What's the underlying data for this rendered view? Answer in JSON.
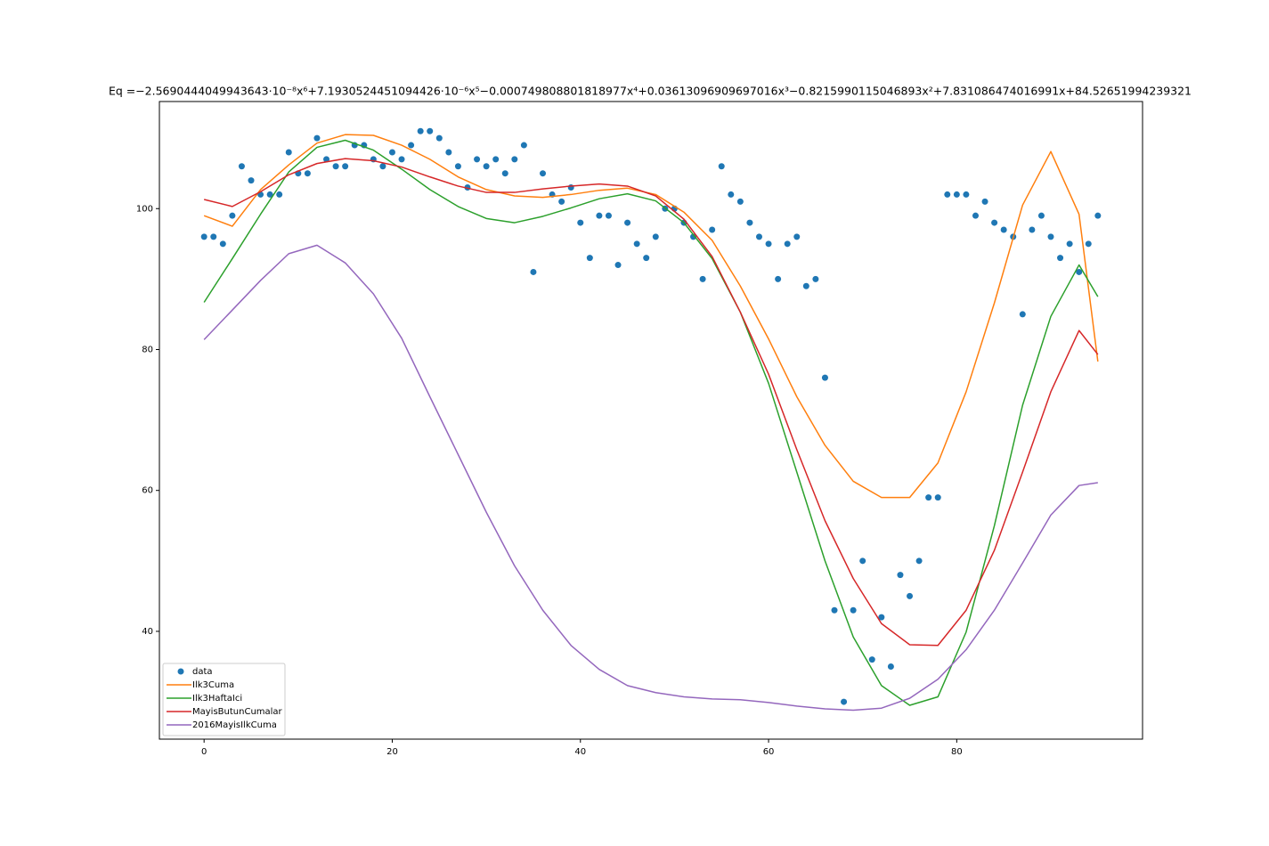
{
  "chart_data": {
    "type": "line",
    "title": "Eq =−2.5690444049943643·10⁻⁸x⁶+7.1930524451094426·10⁻⁶x⁵−0.000749808801818977x⁴+0.03613096909697016x³−0.8215990115046893x²+7.831086474016991x+84.52651994239321",
    "title_color": "#ff0000",
    "xlim": [
      -4.75,
      99.75
    ],
    "ylim": [
      24.7,
      115.2
    ],
    "xticks": [
      0,
      20,
      40,
      60,
      80
    ],
    "yticks": [
      40,
      60,
      80,
      100
    ],
    "grid": false,
    "legend": "lower left",
    "series": [
      {
        "name": "data",
        "type": "scatter",
        "color": "#1f77b4",
        "x": [
          0,
          1,
          2,
          3,
          4,
          5,
          6,
          7,
          8,
          9,
          10,
          11,
          12,
          13,
          14,
          15,
          16,
          17,
          18,
          19,
          20,
          21,
          22,
          23,
          24,
          25,
          26,
          27,
          28,
          29,
          30,
          31,
          32,
          33,
          34,
          35,
          36,
          37,
          38,
          39,
          40,
          41,
          42,
          43,
          44,
          45,
          46,
          47,
          48,
          49,
          50,
          51,
          52,
          53,
          54,
          55,
          56,
          57,
          58,
          59,
          60,
          61,
          62,
          63,
          64,
          65,
          66,
          67,
          68,
          69,
          70,
          71,
          72,
          73,
          74,
          75,
          76,
          77,
          78,
          79,
          80,
          81,
          82,
          83,
          84,
          85,
          86,
          87,
          88,
          89,
          90,
          91,
          92,
          93,
          94,
          95
        ],
        "values": [
          96,
          96,
          95,
          99,
          106,
          104,
          102,
          102,
          102,
          108,
          105,
          105,
          110,
          107,
          106,
          106,
          109,
          109,
          107,
          106,
          108,
          107,
          109,
          111,
          111,
          110,
          108,
          106,
          103,
          107,
          106,
          107,
          105,
          107,
          109,
          91,
          105,
          102,
          101,
          103,
          98,
          93,
          99,
          99,
          92,
          98,
          95,
          93,
          96,
          100,
          100,
          98,
          96,
          90,
          97,
          106,
          102,
          101,
          98,
          96,
          95,
          90,
          95,
          96,
          89,
          90,
          76,
          43,
          30,
          43,
          50,
          36,
          42,
          35,
          48,
          45,
          50,
          59,
          59,
          102,
          102,
          102,
          99,
          101,
          98,
          97,
          96,
          85,
          97,
          99,
          96,
          93,
          95,
          91,
          95,
          99
        ]
      },
      {
        "name": "Ilk3Cuma",
        "type": "line",
        "color": "#ff7f0e",
        "x": [
          0,
          3,
          6,
          9,
          12,
          15,
          18,
          21,
          24,
          27,
          30,
          33,
          36,
          39,
          42,
          45,
          48,
          51,
          54,
          57,
          60,
          63,
          66,
          69,
          72,
          75,
          78,
          81,
          84,
          87,
          90,
          93,
          95
        ],
        "values": [
          99,
          97.5,
          102.7,
          106.2,
          109.3,
          110.5,
          110.4,
          109,
          107,
          104.5,
          102.7,
          101.8,
          101.6,
          102,
          102.6,
          102.9,
          102,
          99.5,
          95.5,
          89,
          81.5,
          73.3,
          66.4,
          61.3,
          59,
          59,
          63.9,
          74,
          86.6,
          100.5,
          108.1,
          99.2,
          78.3
        ]
      },
      {
        "name": "Ilk3HaftaIci",
        "type": "line",
        "color": "#2ca02c",
        "x": [
          0,
          3,
          6,
          9,
          12,
          15,
          18,
          21,
          24,
          27,
          30,
          33,
          36,
          39,
          42,
          45,
          48,
          51,
          54,
          57,
          60,
          63,
          66,
          69,
          72,
          75,
          78,
          81,
          84,
          87,
          90,
          93,
          95
        ],
        "values": [
          86.7,
          92.9,
          99.2,
          105.2,
          108.7,
          109.7,
          108.3,
          105.6,
          102.7,
          100.3,
          98.6,
          98,
          98.9,
          100.1,
          101.4,
          102.1,
          101.1,
          98,
          92.9,
          85.3,
          75.2,
          62.6,
          50,
          39.2,
          32.3,
          29.5,
          30.7,
          39.9,
          55,
          72.1,
          84.7,
          92,
          87.5
        ]
      },
      {
        "name": "MayisButunCumalar",
        "type": "line",
        "color": "#d62728",
        "x": [
          0,
          3,
          6,
          9,
          12,
          15,
          18,
          21,
          24,
          27,
          30,
          33,
          36,
          39,
          42,
          45,
          48,
          51,
          54,
          57,
          60,
          63,
          66,
          69,
          72,
          75,
          78,
          81,
          84,
          87,
          90,
          93,
          95
        ],
        "values": [
          101.3,
          100.3,
          102.4,
          104.8,
          106.4,
          107.1,
          106.8,
          105.9,
          104.5,
          103.2,
          102.3,
          102.3,
          102.8,
          103.2,
          103.5,
          103.2,
          101.8,
          98.5,
          93.2,
          85.3,
          76.5,
          65.8,
          55.7,
          47.5,
          41.1,
          38.1,
          38,
          43,
          51.5,
          62.6,
          74,
          82.7,
          79.3
        ]
      },
      {
        "name": "2016MayisIlkCuma",
        "type": "line",
        "color": "#9467bd",
        "x": [
          0,
          3,
          6,
          9,
          12,
          15,
          18,
          21,
          24,
          27,
          30,
          33,
          36,
          39,
          42,
          45,
          48,
          51,
          54,
          57,
          60,
          63,
          66,
          69,
          72,
          75,
          78,
          81,
          84,
          87,
          90,
          93,
          95
        ],
        "values": [
          81.4,
          85.6,
          89.8,
          93.6,
          94.8,
          92.3,
          87.9,
          81.6,
          73.3,
          65.1,
          56.9,
          49.3,
          43,
          38,
          34.6,
          32.3,
          31.3,
          30.7,
          30.4,
          30.3,
          29.9,
          29.4,
          29,
          28.8,
          29.1,
          30.5,
          33.2,
          37.4,
          43,
          49.7,
          56.5,
          60.7,
          61.1
        ]
      }
    ]
  }
}
